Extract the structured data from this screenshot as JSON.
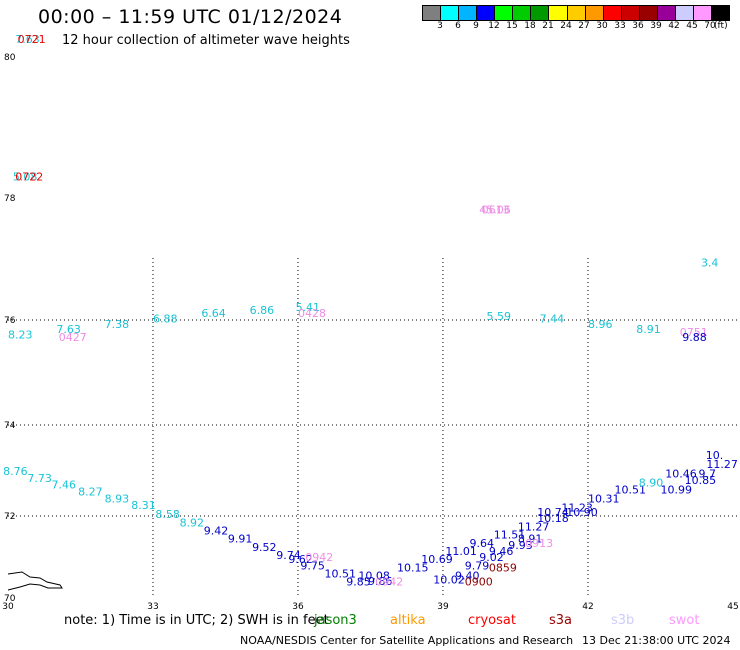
{
  "header": {
    "title": "00:00 – 11:59 UTC 01/12/2024",
    "subtitle": "12 hour collection of altimeter wave heights"
  },
  "colorbar": {
    "colors": [
      "#7f7f7f",
      "#00ffff",
      "#00b4ff",
      "#0000ff",
      "#00ff00",
      "#00cc00",
      "#009900",
      "#ffff00",
      "#ffcc00",
      "#ff9900",
      "#ff0000",
      "#cc0000",
      "#990000",
      "#990099",
      "#ccccff",
      "#ff99ff",
      "#000000"
    ],
    "labels": [
      "3",
      "6",
      "9",
      "12",
      "15",
      "18",
      "21",
      "24",
      "27",
      "30",
      "33",
      "36",
      "39",
      "42",
      "45",
      "70",
      "(ft)"
    ]
  },
  "axes": {
    "x_ticks": [
      "30",
      "33",
      "36",
      "39",
      "42",
      "45"
    ],
    "y_ticks": [
      "70",
      "72",
      "74",
      "76",
      "78",
      "80"
    ]
  },
  "map": {
    "colors": {
      "cyan": "#19c3d6",
      "blue": "#0000c8",
      "pink": "#f08ce6",
      "red": "#e60000",
      "darkred": "#8c0000",
      "coast": "#000000",
      "grid": "#000000"
    },
    "labels": [
      {
        "t": "7.63",
        "lon": 30.15,
        "lat": 80.2,
        "c": "cyan"
      },
      {
        "t": "0721",
        "lon": 30.2,
        "lat": 80.2,
        "c": "red",
        "big": true
      },
      {
        "t": "5.08",
        "lon": 30.1,
        "lat": 78.25,
        "c": "cyan"
      },
      {
        "t": "0722",
        "lon": 30.15,
        "lat": 78.25,
        "c": "red",
        "big": true
      },
      {
        "t": "45.06",
        "lon": 39.75,
        "lat": 77.75,
        "c": "pink"
      },
      {
        "t": "0613",
        "lon": 39.8,
        "lat": 77.75,
        "c": "pink",
        "big": true
      },
      {
        "t": "3.4",
        "lon": 44.7,
        "lat": 76.88,
        "c": "cyan"
      },
      {
        "t": "8.23",
        "lon": 30.0,
        "lat": 75.65,
        "c": "cyan"
      },
      {
        "t": "7.63",
        "lon": 31.0,
        "lat": 75.75,
        "c": "cyan"
      },
      {
        "t": "0427",
        "lon": 31.05,
        "lat": 75.6,
        "c": "pink",
        "big": true
      },
      {
        "t": "7.38",
        "lon": 32.0,
        "lat": 75.85,
        "c": "cyan"
      },
      {
        "t": "6.88",
        "lon": 33.0,
        "lat": 75.95,
        "c": "cyan"
      },
      {
        "t": "6.64",
        "lon": 34.0,
        "lat": 76.05,
        "c": "cyan"
      },
      {
        "t": "6.86",
        "lon": 35.0,
        "lat": 76.1,
        "c": "cyan"
      },
      {
        "t": "5.41",
        "lon": 35.95,
        "lat": 76.15,
        "c": "cyan"
      },
      {
        "t": "0428",
        "lon": 36.0,
        "lat": 76.05,
        "c": "pink",
        "big": true
      },
      {
        "t": "5.59",
        "lon": 39.9,
        "lat": 76.0,
        "c": "cyan"
      },
      {
        "t": "7.44",
        "lon": 41.0,
        "lat": 75.95,
        "c": "cyan"
      },
      {
        "t": "8.96",
        "lon": 42.0,
        "lat": 75.85,
        "c": "cyan"
      },
      {
        "t": "8.91",
        "lon": 43.0,
        "lat": 75.75,
        "c": "cyan"
      },
      {
        "t": "0751",
        "lon": 43.9,
        "lat": 75.7,
        "c": "pink",
        "big": true
      },
      {
        "t": "9.88",
        "lon": 43.95,
        "lat": 75.6,
        "c": "blue"
      },
      {
        "t": "8.76",
        "lon": 29.9,
        "lat": 72.9,
        "c": "cyan"
      },
      {
        "t": "7.73",
        "lon": 30.4,
        "lat": 72.75,
        "c": "cyan"
      },
      {
        "t": "7.46",
        "lon": 30.9,
        "lat": 72.6,
        "c": "cyan"
      },
      {
        "t": "8.27",
        "lon": 31.45,
        "lat": 72.45,
        "c": "cyan"
      },
      {
        "t": "8.93",
        "lon": 32.0,
        "lat": 72.3,
        "c": "cyan"
      },
      {
        "t": "8.31",
        "lon": 32.55,
        "lat": 72.15,
        "c": "cyan"
      },
      {
        "t": "8.58",
        "lon": 33.05,
        "lat": 71.95,
        "c": "cyan"
      },
      {
        "t": "8.92",
        "lon": 33.55,
        "lat": 71.75,
        "c": "cyan"
      },
      {
        "t": "9.42",
        "lon": 34.05,
        "lat": 71.55,
        "c": "blue"
      },
      {
        "t": "9.91",
        "lon": 34.55,
        "lat": 71.35,
        "c": "blue"
      },
      {
        "t": "9.52",
        "lon": 35.05,
        "lat": 71.15,
        "c": "blue"
      },
      {
        "t": "9.74",
        "lon": 35.55,
        "lat": 70.95,
        "c": "blue"
      },
      {
        "t": "9.62",
        "lon": 35.8,
        "lat": 70.85,
        "c": "blue"
      },
      {
        "t": "0942",
        "lon": 36.15,
        "lat": 70.9,
        "c": "pink",
        "big": true
      },
      {
        "t": "9.75",
        "lon": 36.05,
        "lat": 70.7,
        "c": "blue"
      },
      {
        "t": "10.51",
        "lon": 36.55,
        "lat": 70.5,
        "c": "blue"
      },
      {
        "t": "9.85",
        "lon": 37.0,
        "lat": 70.3,
        "c": "blue"
      },
      {
        "t": "10.08",
        "lon": 37.25,
        "lat": 70.45,
        "c": "blue"
      },
      {
        "t": "9.86",
        "lon": 37.45,
        "lat": 70.32,
        "c": "blue"
      },
      {
        "t": "0942",
        "lon": 37.6,
        "lat": 70.3,
        "c": "pink",
        "big": true
      },
      {
        "t": "10.15",
        "lon": 38.05,
        "lat": 70.65,
        "c": "blue"
      },
      {
        "t": "10.69",
        "lon": 38.55,
        "lat": 70.85,
        "c": "blue"
      },
      {
        "t": "10.02",
        "lon": 38.8,
        "lat": 70.35,
        "c": "blue"
      },
      {
        "t": "11.01",
        "lon": 39.05,
        "lat": 71.05,
        "c": "blue"
      },
      {
        "t": "9.40",
        "lon": 39.25,
        "lat": 70.45,
        "c": "blue"
      },
      {
        "t": "0900",
        "lon": 39.45,
        "lat": 70.3,
        "c": "darkred",
        "big": true
      },
      {
        "t": "9.79",
        "lon": 39.45,
        "lat": 70.7,
        "c": "blue"
      },
      {
        "t": "9.64",
        "lon": 39.55,
        "lat": 71.25,
        "c": "blue"
      },
      {
        "t": "9.02",
        "lon": 39.75,
        "lat": 70.9,
        "c": "blue"
      },
      {
        "t": "9.46",
        "lon": 39.95,
        "lat": 71.05,
        "c": "blue"
      },
      {
        "t": "0859",
        "lon": 39.95,
        "lat": 70.65,
        "c": "darkred",
        "big": true
      },
      {
        "t": "11.51",
        "lon": 40.05,
        "lat": 71.45,
        "c": "blue"
      },
      {
        "t": "9.93",
        "lon": 40.35,
        "lat": 71.2,
        "c": "blue"
      },
      {
        "t": "8.91",
        "lon": 40.55,
        "lat": 71.35,
        "c": "blue"
      },
      {
        "t": "0913",
        "lon": 40.7,
        "lat": 71.25,
        "c": "pink",
        "big": true
      },
      {
        "t": "11.27",
        "lon": 40.55,
        "lat": 71.65,
        "c": "blue"
      },
      {
        "t": "10.18",
        "lon": 40.95,
        "lat": 71.85,
        "c": "blue"
      },
      {
        "t": "10.74",
        "lon": 40.95,
        "lat": 72.0,
        "c": "blue"
      },
      {
        "t": "11.23",
        "lon": 41.45,
        "lat": 72.1,
        "c": "blue"
      },
      {
        "t": "10.90",
        "lon": 41.55,
        "lat": 72.0,
        "c": "blue"
      },
      {
        "t": "10.31",
        "lon": 42.0,
        "lat": 72.3,
        "c": "blue"
      },
      {
        "t": "10.51",
        "lon": 42.55,
        "lat": 72.5,
        "c": "blue"
      },
      {
        "t": "8.90",
        "lon": 43.05,
        "lat": 72.65,
        "c": "cyan"
      },
      {
        "t": "10.99",
        "lon": 43.5,
        "lat": 72.5,
        "c": "blue"
      },
      {
        "t": "10.46",
        "lon": 43.6,
        "lat": 72.85,
        "c": "blue"
      },
      {
        "t": "10.85",
        "lon": 44.0,
        "lat": 72.7,
        "c": "blue"
      },
      {
        "t": "11.27",
        "lon": 44.45,
        "lat": 73.05,
        "c": "blue"
      },
      {
        "t": "9.7",
        "lon": 44.65,
        "lat": 72.85,
        "c": "blue"
      },
      {
        "t": "10.",
        "lon": 44.8,
        "lat": 73.25,
        "c": "blue"
      }
    ]
  },
  "footer": {
    "note": "note:  1) Time is in UTC;  2) SWH is in feet",
    "legend": [
      {
        "label": "jason3",
        "color": "#008000",
        "left": 314
      },
      {
        "label": "altika",
        "color": "#ff9900",
        "left": 390
      },
      {
        "label": "cryosat",
        "color": "#ff0000",
        "left": 468
      },
      {
        "label": "s3a",
        "color": "#990000",
        "left": 549
      },
      {
        "label": "s3b",
        "color": "#ccccff",
        "left": 611
      },
      {
        "label": "swot",
        "color": "#ff99ff",
        "left": 669
      }
    ],
    "credit": "NOAA/NESDIS Center for Satellite Applications and Research",
    "timestamp": "13 Dec 21:38:00 UTC 2024"
  }
}
